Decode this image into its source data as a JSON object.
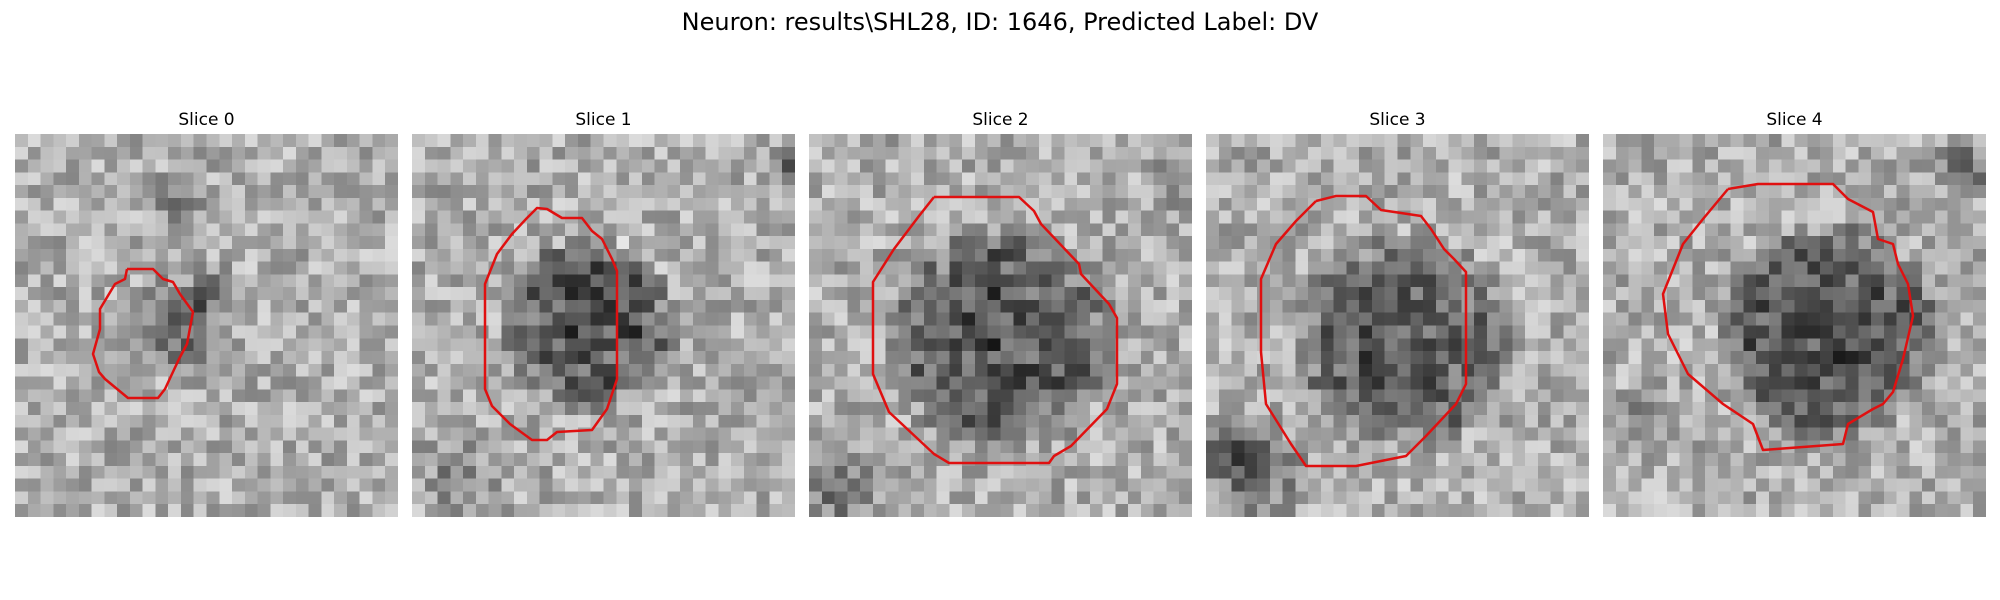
{
  "figure": {
    "title": "Neuron: results\\SHL28, ID: 1646, Predicted Label: DV"
  },
  "slices": [
    {
      "label": "Slice 0"
    },
    {
      "label": "Slice 1"
    },
    {
      "label": "Slice 2"
    },
    {
      "label": "Slice 3"
    },
    {
      "label": "Slice 4"
    }
  ],
  "colors": {
    "contour": "#e01010"
  }
}
